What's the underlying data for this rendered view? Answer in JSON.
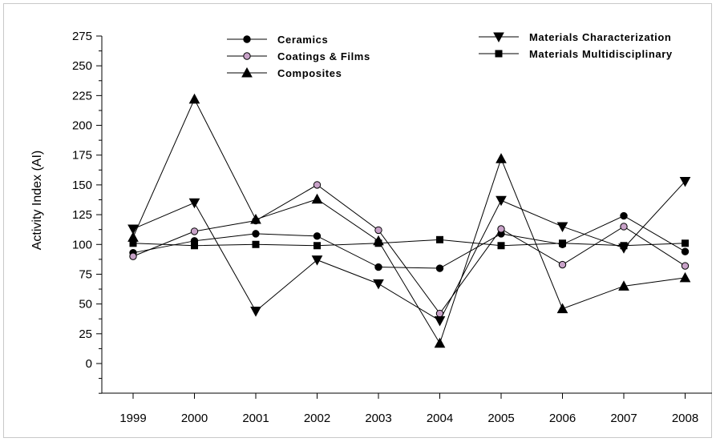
{
  "chart_data": {
    "type": "line",
    "title": "",
    "xlabel": "",
    "ylabel": "Activity Index (AI)",
    "categories": [
      "1999",
      "2000",
      "2001",
      "2002",
      "2003",
      "2004",
      "2005",
      "2006",
      "2007",
      "2008"
    ],
    "ylim": [
      -25,
      275
    ],
    "yticks": [
      "275",
      "250",
      "225",
      "200",
      "175",
      "150",
      "125",
      "100",
      "75",
      "50",
      "25",
      "0"
    ],
    "grid": false,
    "legend_position": "top",
    "series": [
      {
        "name": "Ceramics",
        "marker": "circle",
        "fill": "#000000",
        "values": [
          93,
          103,
          109,
          107,
          81,
          80,
          109,
          100,
          124,
          94
        ]
      },
      {
        "name": "Coatings & Films",
        "marker": "circle",
        "fill": "#c8a2c8",
        "values": [
          90,
          111,
          120,
          150,
          112,
          42,
          113,
          83,
          115,
          82
        ]
      },
      {
        "name": "Composites",
        "marker": "triangle-up",
        "fill": "#000000",
        "values": [
          106,
          222,
          121,
          138,
          103,
          17,
          172,
          46,
          65,
          72
        ]
      },
      {
        "name": "Materials Characterization",
        "marker": "triangle-down",
        "fill": "#000000",
        "values": [
          113,
          135,
          44,
          87,
          67,
          36,
          137,
          115,
          97,
          153
        ]
      },
      {
        "name": "Materials Multidisciplinary",
        "marker": "square",
        "fill": "#000000",
        "values": [
          101,
          99,
          100,
          99,
          101,
          104,
          99,
          101,
          99,
          101
        ]
      }
    ]
  }
}
